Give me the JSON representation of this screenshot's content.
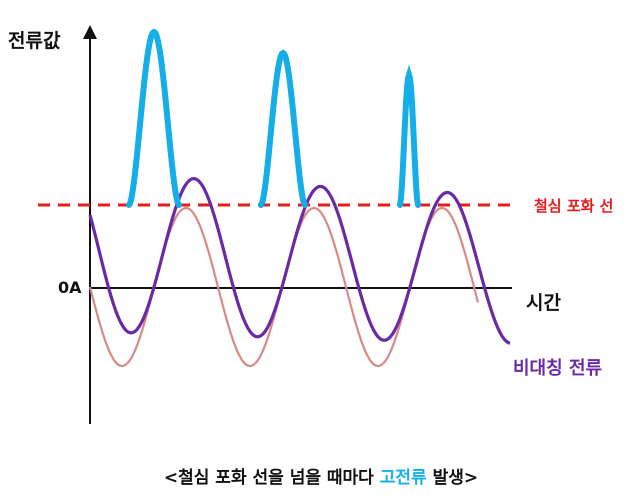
{
  "labels": {
    "y_axis": "전류값",
    "zero": "0A",
    "x_axis": "시간",
    "saturation_line": "철심 포화 선",
    "asymmetric_current": "비대칭 전류"
  },
  "caption": {
    "prefix": "<철심 포화 선을 넘을 때마다 ",
    "highlight": "고전류",
    "suffix": " 발생>"
  },
  "colors": {
    "axis": "#111111",
    "saturation": "#e41c1c",
    "symmetric": "#d88a84",
    "asymmetric": "#6a2aa6",
    "inrush": "#15aee8",
    "caption_highlight": "#15aee8"
  }
}
